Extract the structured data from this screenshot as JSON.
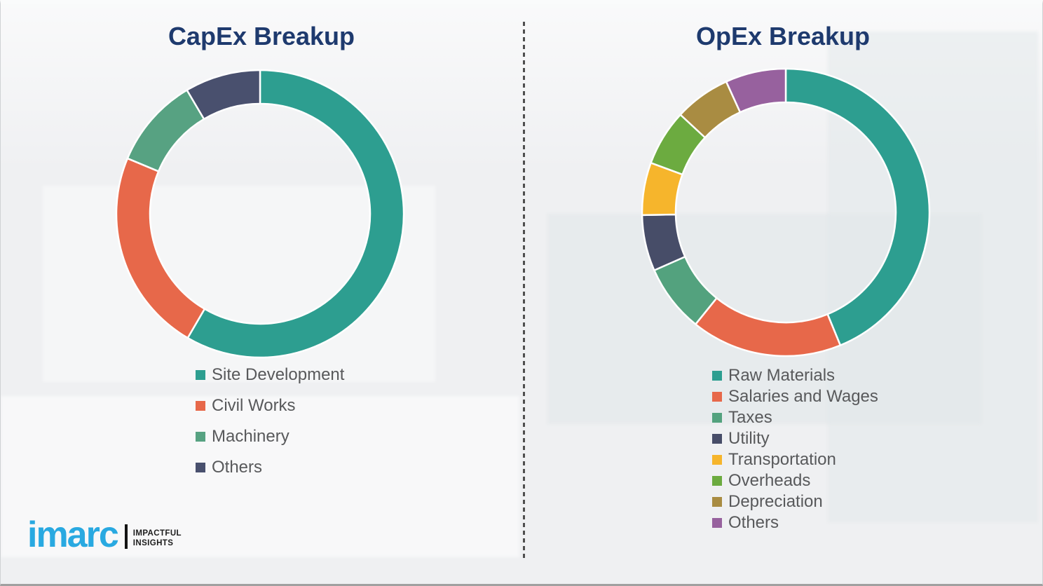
{
  "page": {
    "background_color": "#eff0f2",
    "divider_style": "vertical-dashed",
    "divider_color": "#4f4f4f",
    "title_color": "#1e3a6e",
    "legend_text_color": "#58595b"
  },
  "chart_data": [
    {
      "id": "capex",
      "type": "pie",
      "subtype": "donut",
      "title": "CapEx Breakup",
      "legend_position": "bottom-left",
      "start_angle_deg": 0,
      "direction": "clockwise",
      "categories": [
        "Site Development",
        "Civil Works",
        "Machinery",
        "Others"
      ],
      "values": [
        58.4,
        22.9,
        10.2,
        8.5
      ],
      "colors": [
        "#2d9e90",
        "#e7684a",
        "#57a282",
        "#49506e"
      ]
    },
    {
      "id": "opex",
      "type": "pie",
      "subtype": "donut",
      "title": "OpEx Breakup",
      "legend_position": "bottom-left",
      "start_angle_deg": 0,
      "direction": "clockwise",
      "categories": [
        "Raw Materials",
        "Salaries and Wages",
        "Taxes",
        "Utility",
        "Transportation",
        "Overheads",
        "Depreciation",
        "Others"
      ],
      "values": [
        43.8,
        17.0,
        7.6,
        6.3,
        5.9,
        6.3,
        6.3,
        6.8
      ],
      "colors": [
        "#2d9e90",
        "#e7684a",
        "#53a27e",
        "#474d68",
        "#f6b52c",
        "#6cab40",
        "#a98c42",
        "#97619e"
      ]
    }
  ],
  "logo": {
    "wordmark": "imarc",
    "wordmark_color": "#29a9e1",
    "tagline_line1": "IMPACTFUL",
    "tagline_line2": "INSIGHTS"
  }
}
